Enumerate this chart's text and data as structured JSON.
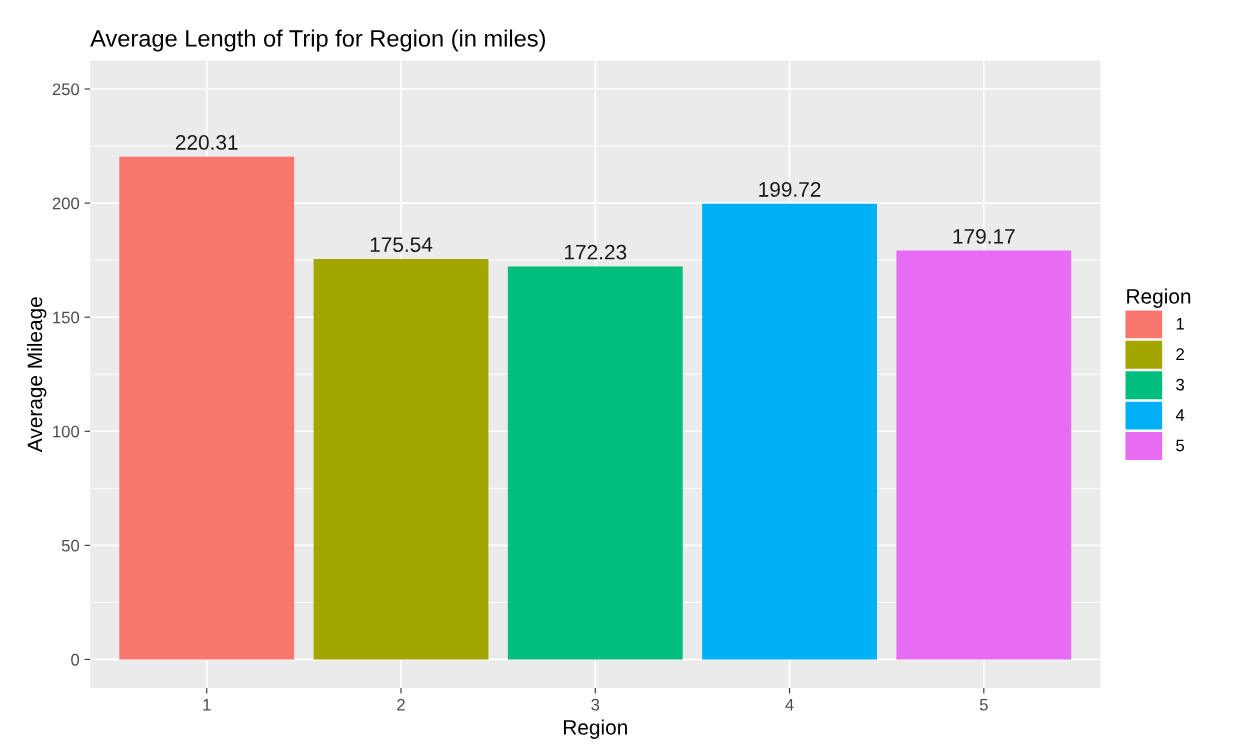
{
  "chart_data": {
    "type": "bar",
    "title": "Average Length of Trip for Region (in miles)",
    "xlabel": "Region",
    "ylabel": "Average Mileage",
    "legend_title": "Region",
    "categories": [
      "1",
      "2",
      "3",
      "4",
      "5"
    ],
    "series": [
      {
        "name": "1",
        "color": "#f8766d",
        "values": [
          220.31,
          null,
          null,
          null,
          null
        ]
      },
      {
        "name": "2",
        "color": "#a3a500",
        "values": [
          null,
          175.54,
          null,
          null,
          null
        ]
      },
      {
        "name": "3",
        "color": "#00bf7d",
        "values": [
          null,
          null,
          172.23,
          null,
          null
        ]
      },
      {
        "name": "4",
        "color": "#00b0f6",
        "values": [
          null,
          null,
          null,
          199.72,
          null
        ]
      },
      {
        "name": "5",
        "color": "#e76bf3",
        "values": [
          null,
          null,
          null,
          null,
          179.17
        ]
      }
    ],
    "ylim": [
      -12.5,
      262.5
    ],
    "yticks": [
      0,
      50,
      100,
      150,
      200,
      250
    ],
    "data_labels": true,
    "grid": true,
    "legend": "right"
  }
}
